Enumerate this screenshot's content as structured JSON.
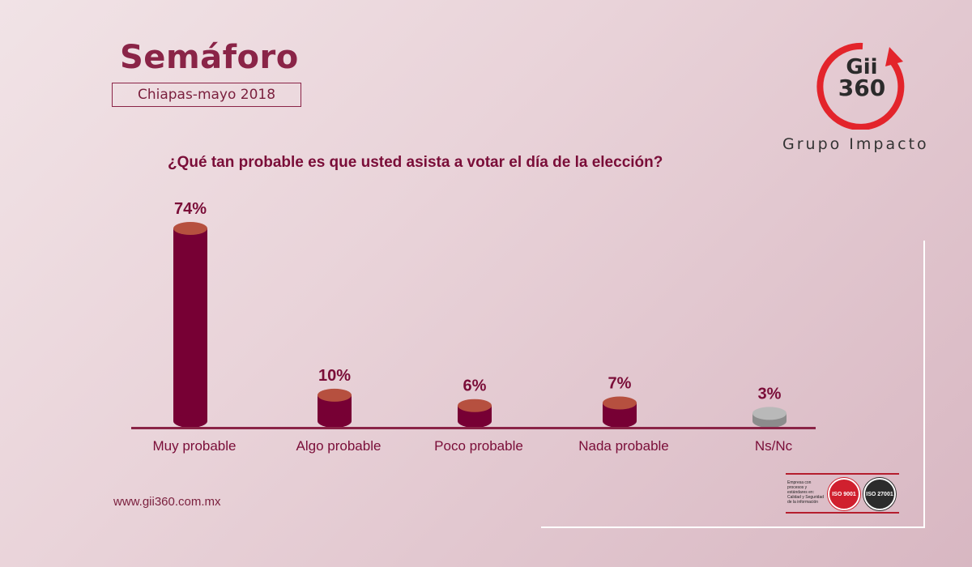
{
  "header": {
    "title": "Semáforo",
    "subtitle": "Chiapas-mayo 2018"
  },
  "brand": {
    "logo_line1": "Gii",
    "logo_line2": "360",
    "name": "Grupo Impacto"
  },
  "footer": {
    "website": "www.gii360.com.mx",
    "iso_note": "Empresa con procesos y estándares en: Calidad y Seguridad de la información",
    "iso_seal_1": "ISO 9001",
    "iso_seal_2": "ISO 27001"
  },
  "colors": {
    "bar": "#770034",
    "bar_top": "#b6503f",
    "bar_na": "#8c8c8c",
    "bar_na_top": "#b9b9b9",
    "axis": "#8a2447",
    "accent": "#8a2447",
    "logo_ring": "#e3242b"
  },
  "chart_data": {
    "type": "bar",
    "title": "¿Qué tan probable es que usted asista a votar el día de la elección?",
    "categories": [
      "Muy probable",
      "Algo probable",
      "Poco probable",
      "Nada probable",
      "Ns/Nc"
    ],
    "values": [
      74,
      10,
      6,
      7,
      3
    ],
    "value_labels": [
      "74%",
      "10%",
      "6%",
      "7%",
      "3%"
    ],
    "unit": "%",
    "ylim": [
      0,
      74
    ],
    "grid": false,
    "legend": "none"
  }
}
